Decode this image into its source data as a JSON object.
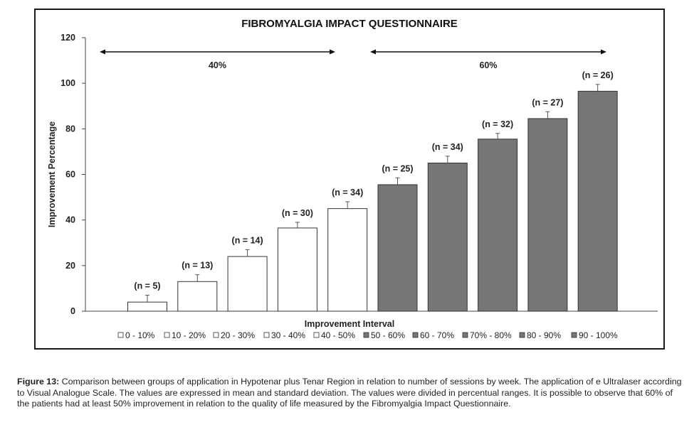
{
  "chart_data": {
    "type": "bar",
    "title": "FIBROMYALGIA IMPACT QUESTIONNAIRE",
    "xlabel": "Improvement Interval",
    "ylabel": "Improvement Percentage",
    "ylim": [
      0,
      120
    ],
    "yticks": [
      0,
      20,
      40,
      60,
      80,
      100,
      120
    ],
    "grid": false,
    "legend": "bottom",
    "categories": [
      "0 - 10%",
      "10 - 20%",
      "20 - 30%",
      "30 - 40%",
      "40 - 50%",
      "50 - 60%",
      "60 - 70%",
      "70% - 80%",
      "80 - 90%",
      "90 - 100%"
    ],
    "values": [
      4,
      13,
      24,
      36.5,
      45,
      55.5,
      65,
      75.5,
      84.5,
      96.5
    ],
    "errors": [
      3,
      3,
      3,
      2.5,
      3,
      3,
      3,
      2.5,
      3,
      3
    ],
    "annotations": [
      "(n = 5)",
      "(n = 13)",
      "(n = 14)",
      "(n = 30)",
      "(n = 34)",
      "(n = 25)",
      "(n = 34)",
      "(n = 32)",
      "(n = 27)",
      "(n = 26)"
    ],
    "colors": {
      "white_bar": "#ffffff",
      "grey_bar": "#767676",
      "outline": "#333333",
      "axis": "#444444"
    },
    "groups": [
      {
        "label": "40%",
        "from": 0,
        "to": 4,
        "fill": "white"
      },
      {
        "label": "60%",
        "from": 5,
        "to": 9,
        "fill": "grey"
      }
    ]
  },
  "caption": {
    "label": "Figure 13:",
    "text": " Comparison between groups of application in Hypotenar plus Tenar Region in relation to number of sessions by week. The application of e Ultralaser according to Visual Analogue Scale. The values are expressed in mean and standard deviation. The values were divided in percentual ranges. It is possible to observe that 60% of the patients had at least 50% improvement in relation to the quality of life measured by the Fibromyalgia Impact Questionnaire."
  }
}
